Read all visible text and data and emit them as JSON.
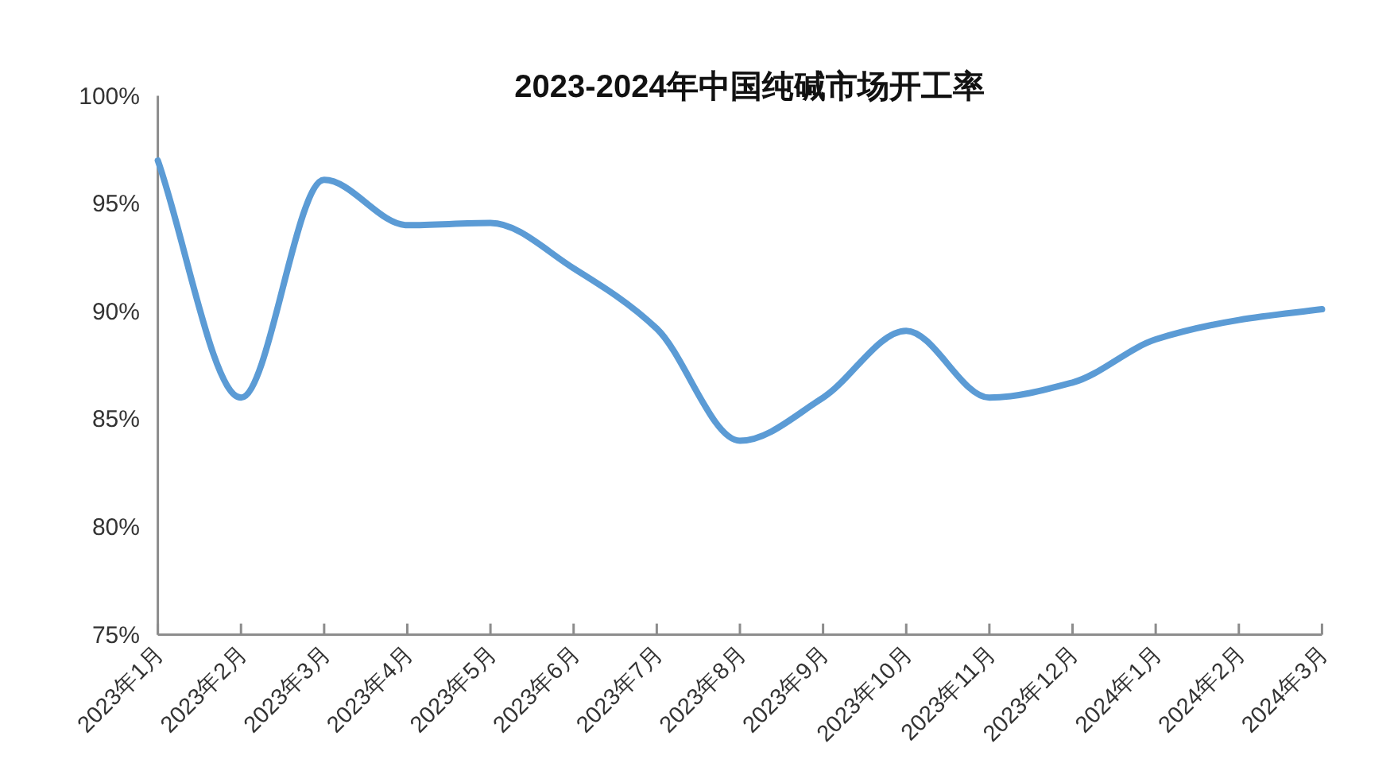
{
  "chart_data": {
    "type": "line",
    "title": "2023-2024年中国纯碱市场开工率",
    "categories": [
      "2023年1月",
      "2023年2月",
      "2023年3月",
      "2023年4月",
      "2023年5月",
      "2023年6月",
      "2023年7月",
      "2023年8月",
      "2023年9月",
      "2023年10月",
      "2023年11月",
      "2023年12月",
      "2024年1月",
      "2024年2月",
      "2024年3月"
    ],
    "series": [
      {
        "color": "#5b9bd5",
        "values": [
          97,
          86,
          96.1,
          94,
          94.1,
          92,
          89.2,
          84,
          86,
          89.1,
          86,
          86.7,
          88.7,
          89.6,
          90.1
        ]
      }
    ],
    "ylim": [
      75,
      100
    ],
    "yticks": [
      {
        "value": 75,
        "label": "75%"
      },
      {
        "value": 80,
        "label": "80%"
      },
      {
        "value": 85,
        "label": "85%"
      },
      {
        "value": 90,
        "label": "90%"
      },
      {
        "value": 95,
        "label": "95%"
      },
      {
        "value": 100,
        "label": "100%"
      }
    ]
  }
}
